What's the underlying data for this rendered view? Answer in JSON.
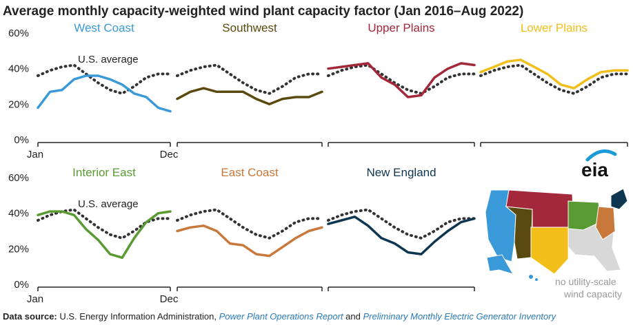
{
  "title": "Average monthly capacity-weighted wind plant capacity factor (Jan 2016–Aug 2022)",
  "source": {
    "label": "Data source:",
    "org": "U.S. Energy Information Administration,",
    "report1": "Power Plant Operations Report",
    "joiner": "and",
    "report2": "Preliminary Monthly Electric Generator Inventory"
  },
  "logo_text": "eia",
  "map_note_line1": "no utility-scale",
  "map_note_line2": "wind capacity",
  "colors": {
    "west_coast": "#3a9ad9",
    "southwest": "#5a4a10",
    "upper_plains": "#a3283a",
    "lower_plains": "#f2be19",
    "interior_east": "#5a9a32",
    "east_coast": "#c8783a",
    "new_england": "#0f3650",
    "us_average": "#333333",
    "no_capacity": "#d8d8d8"
  },
  "chart_data": [
    {
      "type": "line",
      "title": "West Coast",
      "color_key": "west_coast",
      "x": [
        "Jan",
        "Feb",
        "Mar",
        "Apr",
        "May",
        "Jun",
        "Jul",
        "Aug",
        "Sep",
        "Oct",
        "Nov",
        "Dec"
      ],
      "series": [
        {
          "name": "West Coast",
          "values": [
            18,
            27,
            28,
            34,
            36,
            36,
            34,
            31,
            26,
            24,
            18,
            16
          ]
        },
        {
          "name": "U.S. average",
          "values": [
            36,
            39,
            41,
            42,
            37,
            32,
            28,
            26,
            30,
            35,
            37,
            37
          ]
        }
      ],
      "annotation": "U.S. average",
      "ylim": [
        0,
        60
      ],
      "yticks": [
        "0%",
        "20%",
        "40%",
        "60%"
      ],
      "xticks": [
        "Jan",
        "Dec"
      ]
    },
    {
      "type": "line",
      "title": "Southwest",
      "color_key": "southwest",
      "x": [
        "Jan",
        "Feb",
        "Mar",
        "Apr",
        "May",
        "Jun",
        "Jul",
        "Aug",
        "Sep",
        "Oct",
        "Nov",
        "Dec"
      ],
      "series": [
        {
          "name": "Southwest",
          "values": [
            23,
            27,
            29,
            27,
            27,
            27,
            23,
            20,
            23,
            24,
            24,
            27
          ]
        },
        {
          "name": "U.S. average",
          "values": [
            36,
            39,
            41,
            42,
            37,
            32,
            28,
            26,
            30,
            35,
            37,
            37
          ]
        }
      ],
      "ylim": [
        0,
        60
      ]
    },
    {
      "type": "line",
      "title": "Upper Plains",
      "color_key": "upper_plains",
      "x": [
        "Jan",
        "Feb",
        "Mar",
        "Apr",
        "May",
        "Jun",
        "Jul",
        "Aug",
        "Sep",
        "Oct",
        "Nov",
        "Dec"
      ],
      "series": [
        {
          "name": "Upper Plains",
          "values": [
            40,
            41,
            42,
            43,
            35,
            31,
            24,
            25,
            35,
            40,
            43,
            42
          ]
        },
        {
          "name": "U.S. average",
          "values": [
            36,
            39,
            41,
            42,
            37,
            32,
            28,
            26,
            30,
            35,
            37,
            37
          ]
        }
      ],
      "ylim": [
        0,
        60
      ]
    },
    {
      "type": "line",
      "title": "Lower Plains",
      "color_key": "lower_plains",
      "x": [
        "Jan",
        "Feb",
        "Mar",
        "Apr",
        "May",
        "Jun",
        "Jul",
        "Aug",
        "Sep",
        "Oct",
        "Nov",
        "Dec"
      ],
      "series": [
        {
          "name": "Lower Plains",
          "values": [
            38,
            41,
            44,
            45,
            41,
            37,
            31,
            29,
            34,
            38,
            39,
            39
          ]
        },
        {
          "name": "U.S. average",
          "values": [
            36,
            39,
            41,
            42,
            37,
            32,
            28,
            26,
            30,
            35,
            37,
            37
          ]
        }
      ],
      "ylim": [
        0,
        60
      ]
    },
    {
      "type": "line",
      "title": "Interior East",
      "color_key": "interior_east",
      "x": [
        "Jan",
        "Feb",
        "Mar",
        "Apr",
        "May",
        "Jun",
        "Jul",
        "Aug",
        "Sep",
        "Oct",
        "Nov",
        "Dec"
      ],
      "series": [
        {
          "name": "Interior East",
          "values": [
            39,
            41,
            41,
            39,
            31,
            25,
            17,
            15,
            26,
            35,
            40,
            41
          ]
        },
        {
          "name": "U.S. average",
          "values": [
            36,
            39,
            41,
            42,
            37,
            32,
            28,
            26,
            30,
            35,
            37,
            37
          ]
        }
      ],
      "annotation": "U.S. average",
      "ylim": [
        0,
        60
      ],
      "yticks": [
        "0%",
        "20%",
        "40%",
        "60%"
      ],
      "xticks": [
        "Jan",
        "Dec"
      ]
    },
    {
      "type": "line",
      "title": "East Coast",
      "color_key": "east_coast",
      "x": [
        "Jan",
        "Feb",
        "Mar",
        "Apr",
        "May",
        "Jun",
        "Jul",
        "Aug",
        "Sep",
        "Oct",
        "Nov",
        "Dec"
      ],
      "series": [
        {
          "name": "East Coast",
          "values": [
            30,
            32,
            33,
            30,
            23,
            22,
            17,
            16,
            21,
            26,
            30,
            32
          ]
        },
        {
          "name": "U.S. average",
          "values": [
            36,
            39,
            41,
            42,
            37,
            32,
            28,
            26,
            30,
            35,
            37,
            37
          ]
        }
      ],
      "ylim": [
        0,
        60
      ]
    },
    {
      "type": "line",
      "title": "New England",
      "color_key": "new_england",
      "x": [
        "Jan",
        "Feb",
        "Mar",
        "Apr",
        "May",
        "Jun",
        "Jul",
        "Aug",
        "Sep",
        "Oct",
        "Nov",
        "Dec"
      ],
      "series": [
        {
          "name": "New England",
          "values": [
            34,
            36,
            38,
            33,
            26,
            23,
            18,
            17,
            24,
            30,
            35,
            37
          ]
        },
        {
          "name": "U.S. average",
          "values": [
            36,
            39,
            41,
            42,
            37,
            32,
            28,
            26,
            30,
            35,
            37,
            37
          ]
        }
      ],
      "ylim": [
        0,
        60
      ]
    }
  ]
}
